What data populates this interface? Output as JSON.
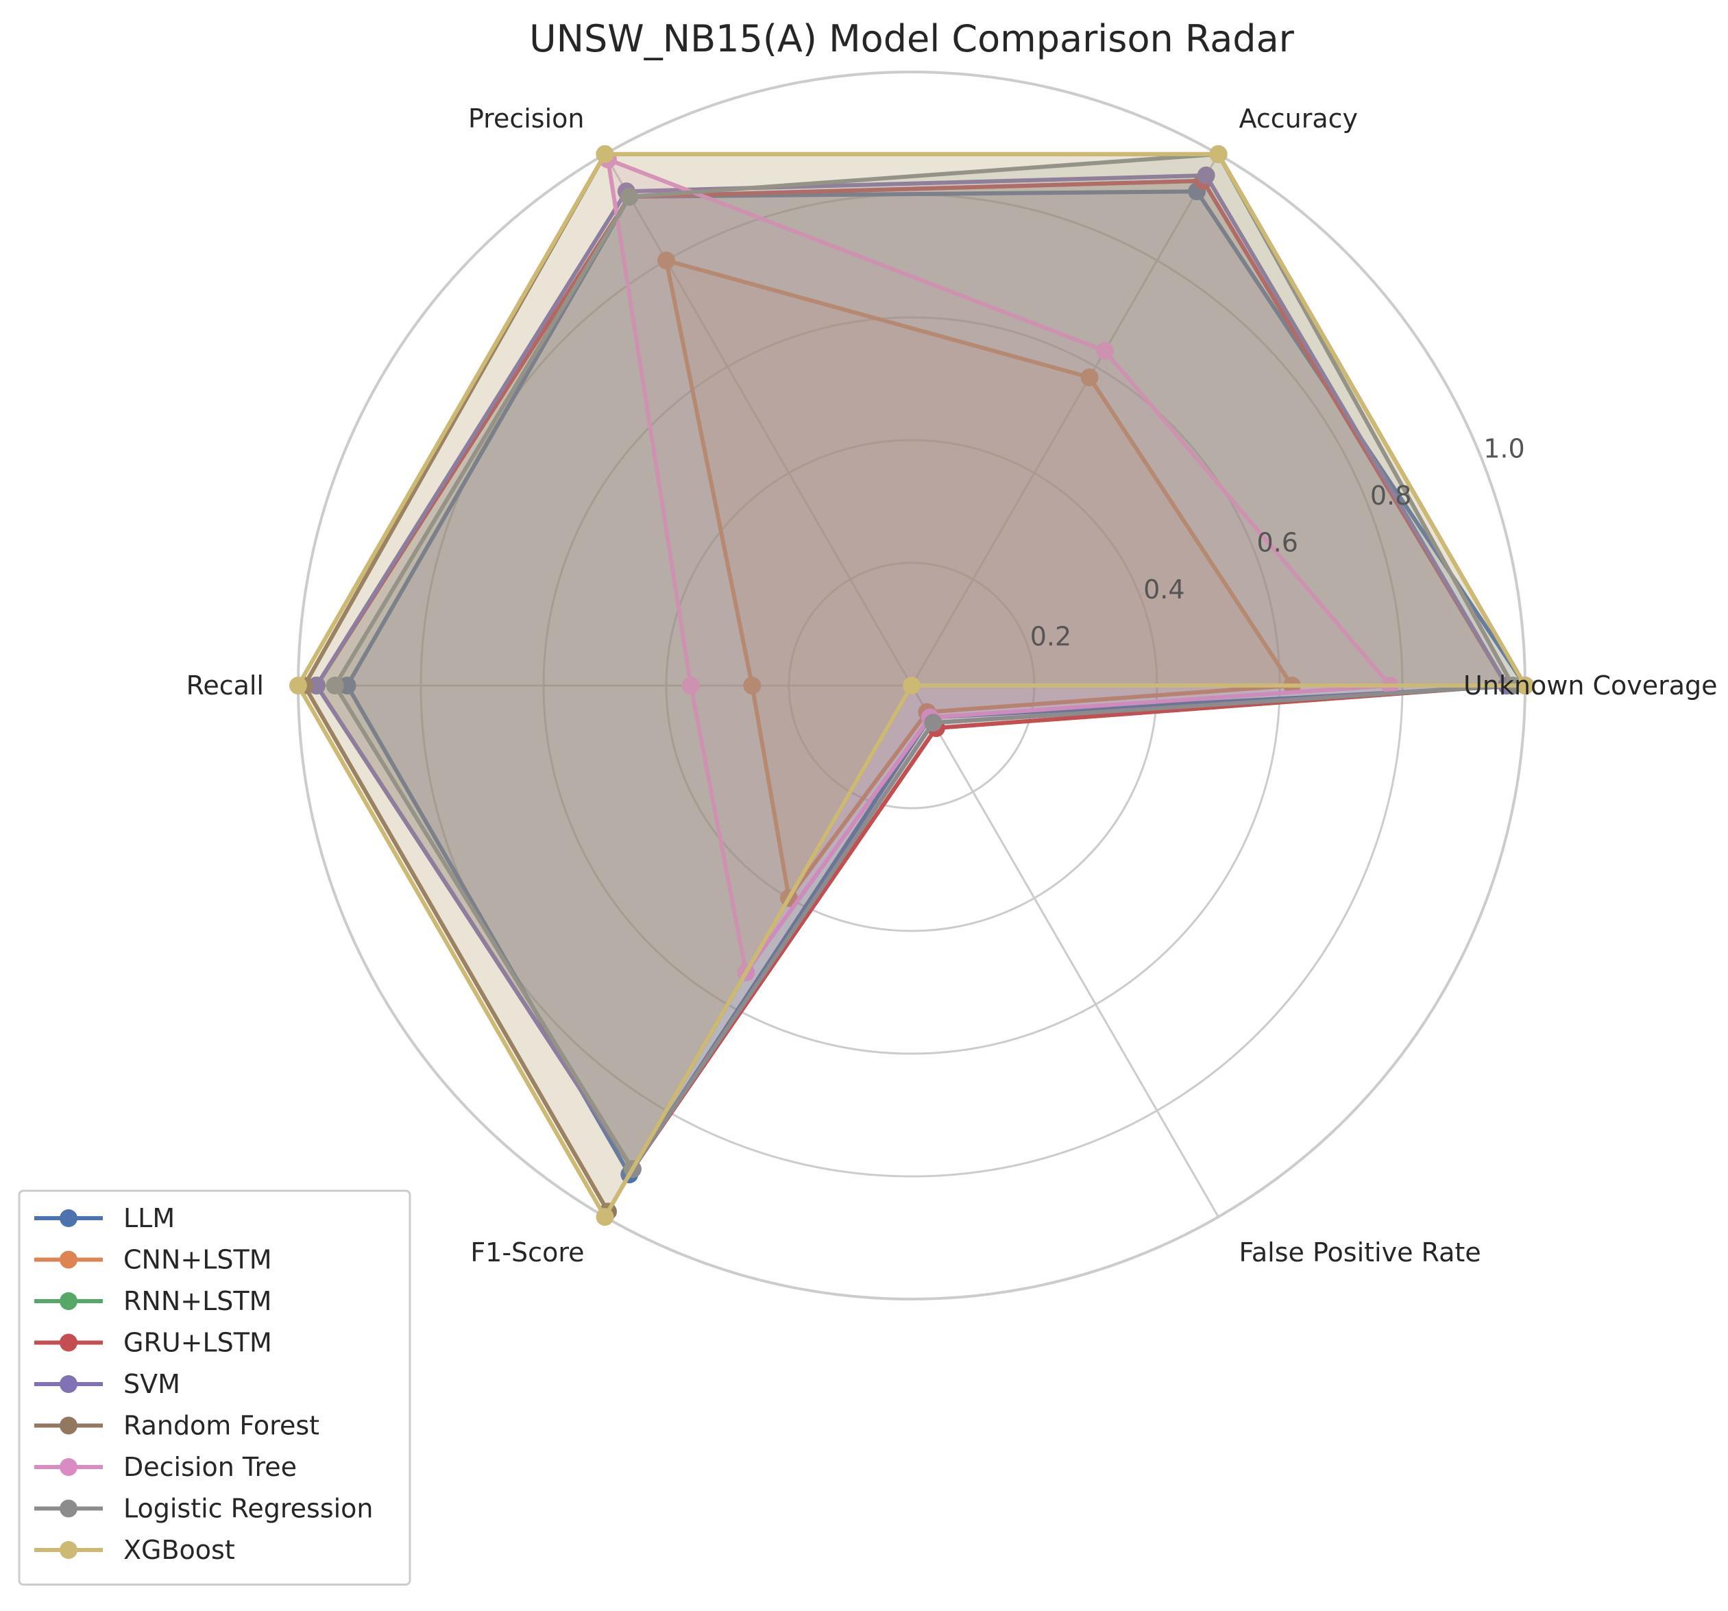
{
  "chart_data": {
    "type": "radar",
    "title": "UNSW_NB15(A) Model Comparison Radar",
    "axes": [
      "Unknown Coverage",
      "Accuracy",
      "Precision",
      "Recall",
      "F1-Score",
      "False Positive Rate"
    ],
    "rlim": [
      0,
      1.0
    ],
    "rticks": [
      "0.2",
      "0.4",
      "0.6",
      "0.8",
      "1.0"
    ],
    "grid": true,
    "legend_position": "lower-left",
    "series": [
      {
        "name": "LLM",
        "color": "#4C72B0",
        "values": [
          1.0,
          0.93,
          0.92,
          0.92,
          0.92,
          0.06
        ]
      },
      {
        "name": "CNN+LSTM",
        "color": "#DD8452",
        "values": [
          0.62,
          0.58,
          0.8,
          0.26,
          0.4,
          0.05
        ]
      },
      {
        "name": "RNN+LSTM",
        "color": "#55A868",
        "values": [
          0.97,
          0.95,
          0.92,
          0.97,
          0.91,
          0.08
        ]
      },
      {
        "name": "GRU+LSTM",
        "color": "#C44E52",
        "values": [
          0.97,
          0.95,
          0.92,
          0.97,
          0.91,
          0.08
        ]
      },
      {
        "name": "SVM",
        "color": "#8172B3",
        "values": [
          0.97,
          0.96,
          0.93,
          0.97,
          0.91,
          0.07
        ]
      },
      {
        "name": "Random Forest",
        "color": "#937860",
        "values": [
          1.0,
          1.0,
          1.0,
          0.99,
          0.99,
          0.0
        ]
      },
      {
        "name": "Decision Tree",
        "color": "#DA8BC3",
        "values": [
          0.78,
          0.63,
          0.99,
          0.36,
          0.54,
          0.06
        ]
      },
      {
        "name": "Logistic Regression",
        "color": "#8C8C8C",
        "values": [
          0.98,
          1.0,
          0.92,
          0.94,
          0.91,
          0.07
        ]
      },
      {
        "name": "XGBoost",
        "color": "#CCB974",
        "values": [
          1.0,
          1.0,
          1.0,
          1.0,
          1.0,
          0.0
        ]
      }
    ]
  }
}
